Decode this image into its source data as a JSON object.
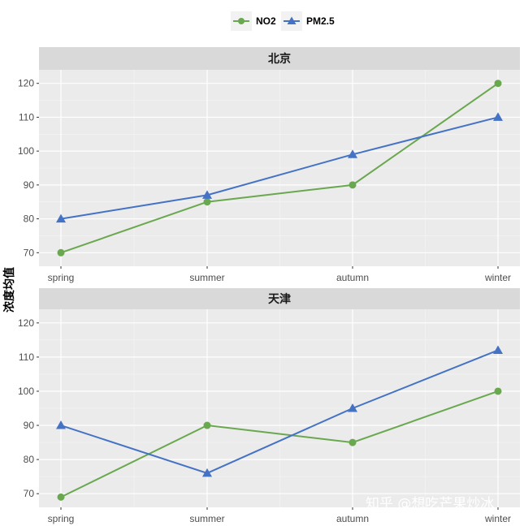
{
  "chart_data": {
    "type": "line",
    "ylabel": "浓度均值",
    "categories": [
      "spring",
      "summer",
      "autumn",
      "winter"
    ],
    "ylim": [
      66,
      124
    ],
    "yticks": [
      70,
      80,
      90,
      100,
      110,
      120
    ],
    "grid": true,
    "legend_position": "top",
    "legend": [
      {
        "name": "NO2",
        "color": "#6aa84f",
        "marker": "circle"
      },
      {
        "name": "PM2.5",
        "color": "#4472c4",
        "marker": "triangle"
      }
    ],
    "panels": [
      {
        "title": "北京",
        "series": [
          {
            "name": "NO2",
            "values": [
              70,
              85,
              90,
              120
            ]
          },
          {
            "name": "PM2.5",
            "values": [
              80,
              87,
              99,
              110
            ]
          }
        ]
      },
      {
        "title": "天津",
        "series": [
          {
            "name": "NO2",
            "values": [
              69,
              90,
              85,
              100
            ]
          },
          {
            "name": "PM2.5",
            "values": [
              90,
              76,
              95,
              112
            ]
          }
        ]
      }
    ]
  },
  "watermark": "知乎 @想吃芒果炒冰"
}
